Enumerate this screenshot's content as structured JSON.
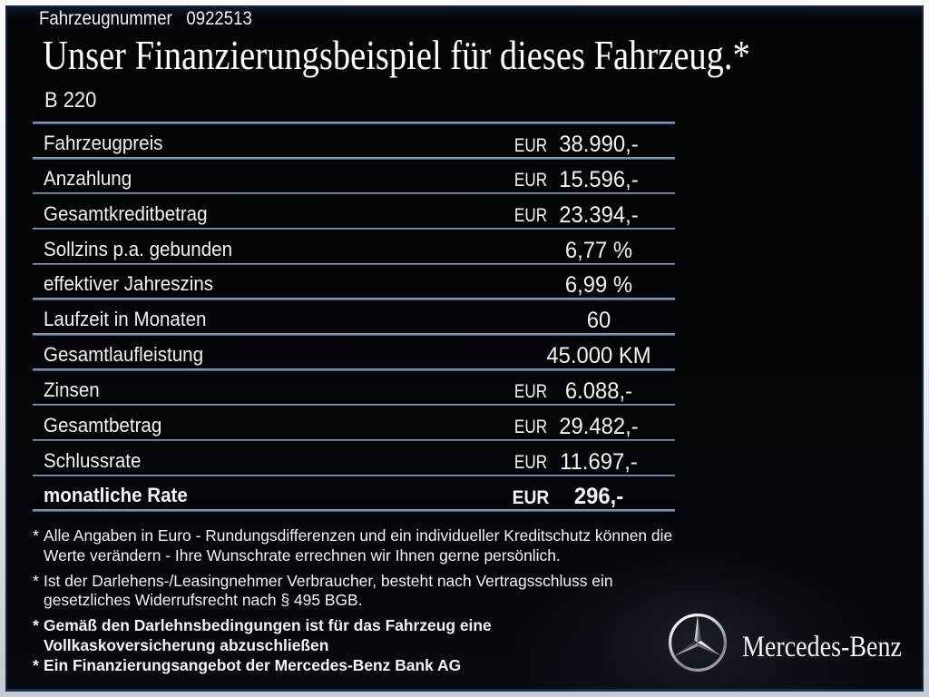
{
  "colors": {
    "background": "#05060a",
    "frame_outer_top": "#f8fafd",
    "frame_outer_bottom": "#c3cad4",
    "frame_inner_border": "#17253f",
    "text": "#f2f3f6",
    "separator_light": "#b6c1cd",
    "separator_dark": "#3a4d6e"
  },
  "header": {
    "vehicle_number_line": "Fahrzeugnummer  0922513",
    "title": "Unser Finanzierungsbeispiel für dieses Fahrzeug.*",
    "model": "B 220"
  },
  "table": {
    "rows": [
      {
        "label": "Fahrzeugpreis",
        "currency": "EUR",
        "value": "38.990,-",
        "bold": false
      },
      {
        "label": "Anzahlung",
        "currency": "EUR",
        "value": "15.596,-",
        "bold": false
      },
      {
        "label": "Gesamtkreditbetrag",
        "currency": "EUR",
        "value": "23.394,-",
        "bold": false
      },
      {
        "label": "Sollzins p.a. gebunden",
        "currency": "",
        "value": "6,77 %",
        "bold": false
      },
      {
        "label": "effektiver Jahreszins",
        "currency": "",
        "value": "6,99 %",
        "bold": false
      },
      {
        "label": "Laufzeit in Monaten",
        "currency": "",
        "value": "60",
        "bold": false
      },
      {
        "label": "Gesamtlaufleistung",
        "currency": "",
        "value": "45.000 KM",
        "bold": false
      },
      {
        "label": "Zinsen",
        "currency": "EUR",
        "value": "6.088,-",
        "bold": false
      },
      {
        "label": "Gesamtbetrag",
        "currency": "EUR",
        "value": "29.482,-",
        "bold": false
      },
      {
        "label": "Schlussrate",
        "currency": "EUR",
        "value": "11.697,-",
        "bold": false
      },
      {
        "label": "monatliche Rate",
        "currency": "EUR",
        "value": "296,-",
        "bold": true
      }
    ]
  },
  "footnotes": [
    {
      "marker": "*",
      "bold": false,
      "lines": [
        "Alle Angaben in Euro - Rundungsdifferenzen und ein individueller Kreditschutz können die",
        "Werte verändern - Ihre Wunschrate errechnen wir Ihnen gerne persönlich."
      ]
    },
    {
      "marker": "*",
      "bold": false,
      "lines": [
        "Ist der Darlehens-/Leasingnehmer Verbraucher, besteht nach Vertragsschluss ein",
        "gesetzliches Widerrufsrecht nach § 495 BGB."
      ]
    },
    {
      "marker": "*",
      "bold": true,
      "lines": [
        "Gemäß den Darlehnsbedingungen ist für das Fahrzeug eine",
        "Vollkaskoversicherung abzuschließen"
      ]
    },
    {
      "marker": "*",
      "bold": true,
      "lines": [
        "Ein Finanzierungsangebot der Mercedes-Benz Bank AG"
      ]
    }
  ],
  "brand": {
    "wordmark": "Mercedes-Benz",
    "logo": "mercedes-star-icon"
  }
}
